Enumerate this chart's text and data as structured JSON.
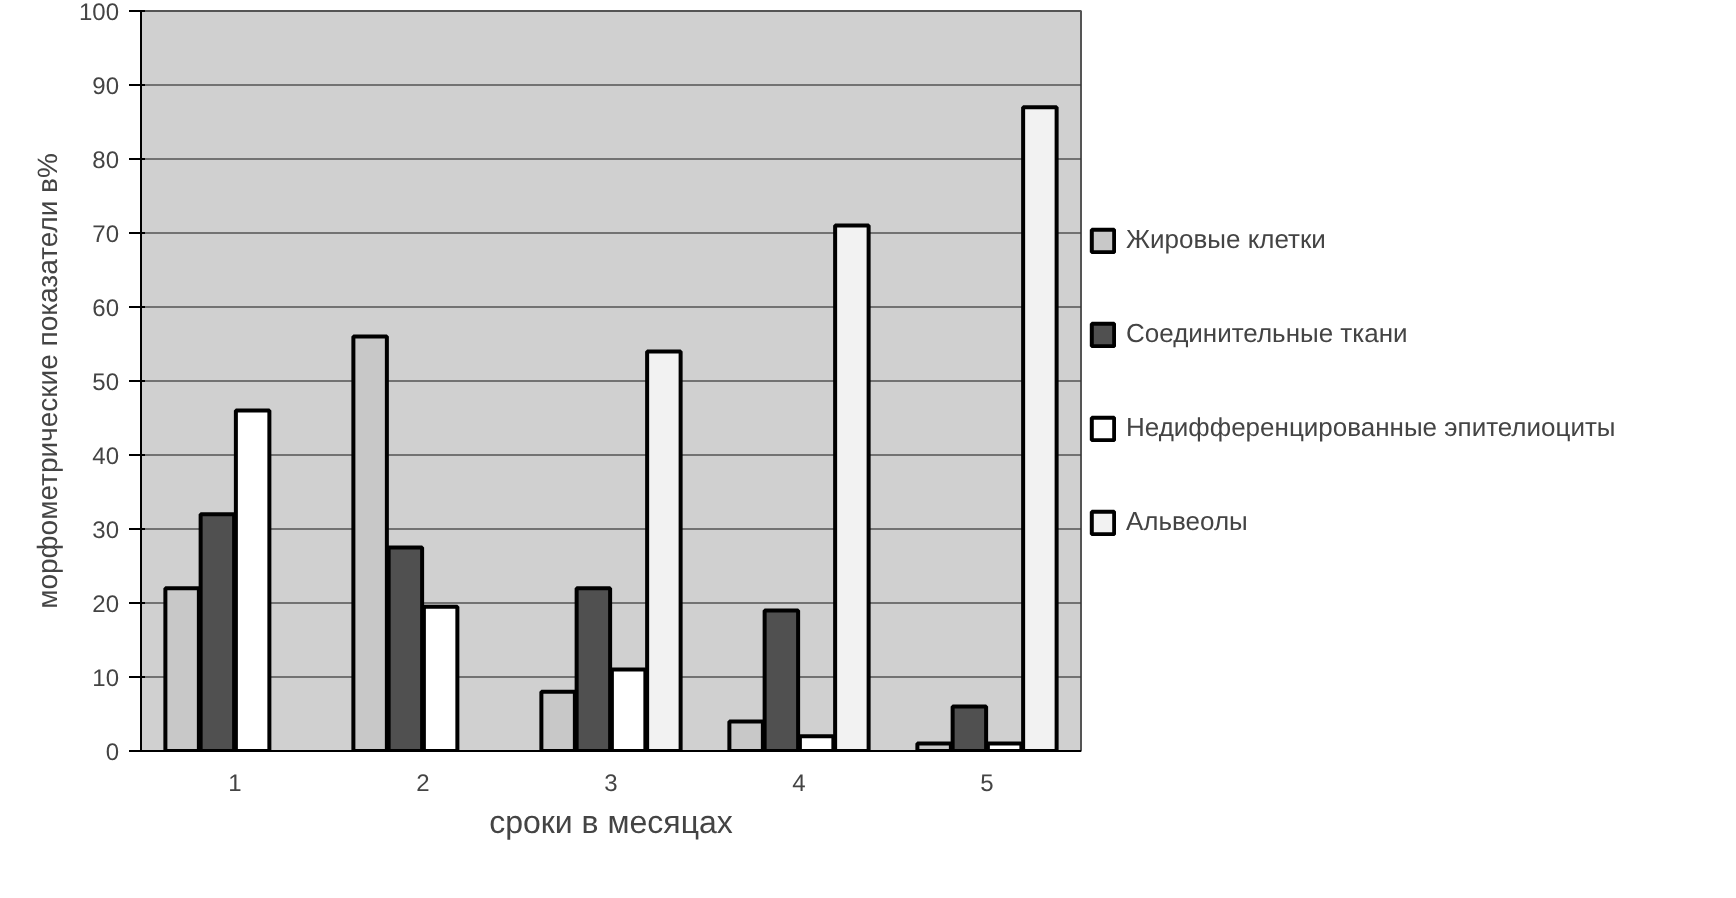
{
  "chart_data": {
    "type": "bar",
    "xlabel": "сроки в месяцах",
    "ylabel": "морфометрические показатели в%",
    "categories": [
      "1",
      "2",
      "3",
      "4",
      "5"
    ],
    "series": [
      {
        "name": "Жировые клетки",
        "color": "#c8c8c8",
        "values": [
          22,
          56,
          8,
          4,
          1
        ]
      },
      {
        "name": "Соединительные ткани",
        "color": "#505050",
        "values": [
          32,
          27.5,
          22,
          19,
          6
        ]
      },
      {
        "name": "Недифференцированные эпителиоциты",
        "color": "#ffffff",
        "values": [
          46,
          19.5,
          11,
          2,
          1
        ]
      },
      {
        "name": "Альвеолы",
        "color": "#f2f2f2",
        "values": [
          null,
          null,
          54,
          71,
          87
        ]
      }
    ],
    "ylim": [
      0,
      100
    ],
    "yticks": [
      0,
      10,
      20,
      30,
      40,
      50,
      60,
      70,
      80,
      90,
      100
    ],
    "grid": "y",
    "legend": "right"
  }
}
